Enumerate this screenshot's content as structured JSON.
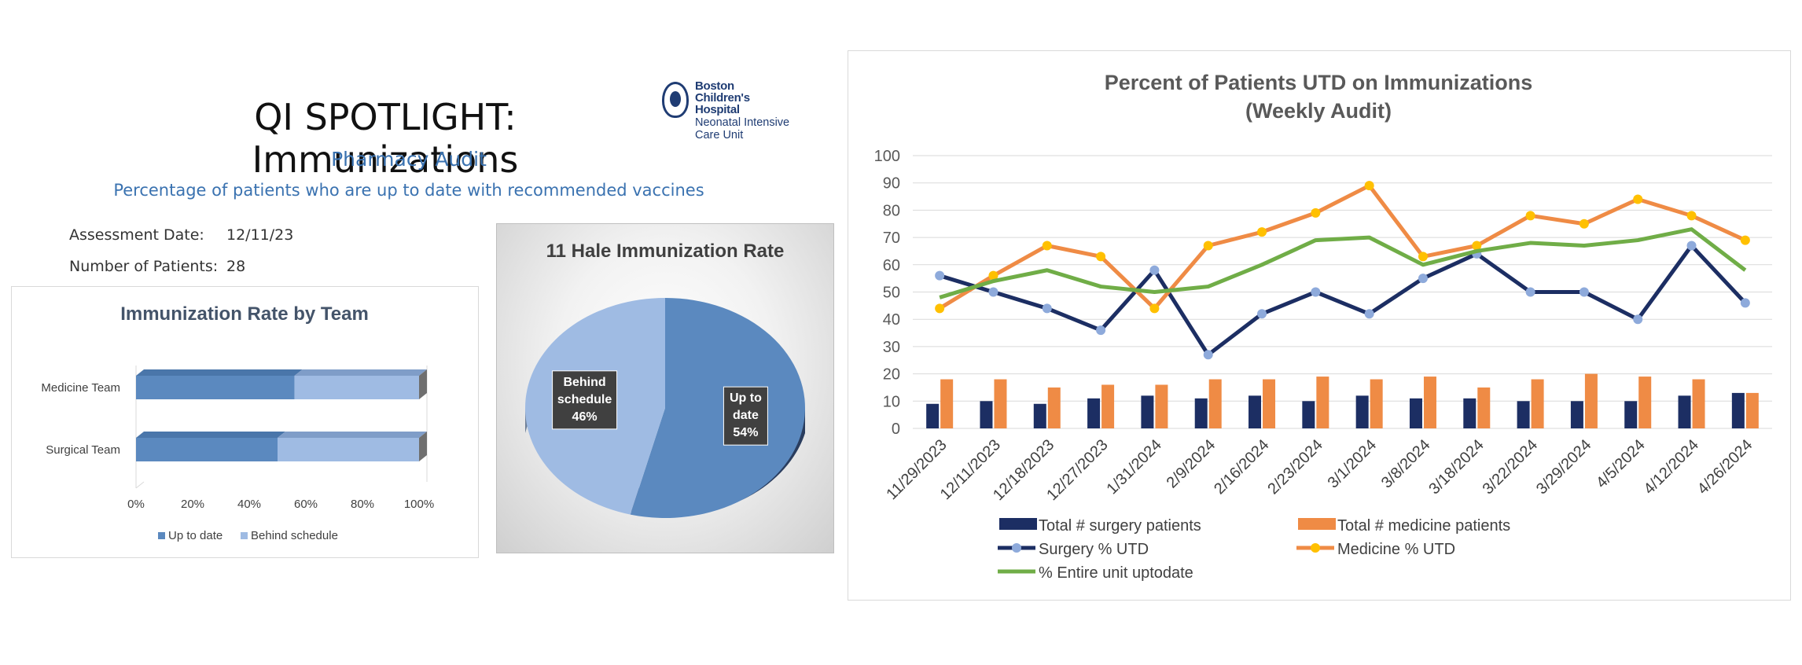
{
  "header": {
    "title": "QI SPOTLIGHT: Immunizations",
    "subtitle": "Pharmacy Audit",
    "description": "Percentage of patients who are up to date with recommended vaccines"
  },
  "logo": {
    "name_lines": [
      "Boston",
      "Children's",
      "Hospital"
    ],
    "unit_lines": [
      "Neonatal Intensive",
      "Care Unit"
    ]
  },
  "assessment": {
    "date_label": "Assessment Date:",
    "date_value": "12/11/23",
    "patients_label": "Number of Patients:",
    "patients_value": "28"
  },
  "colors": {
    "up_to_date": "#5b89bf",
    "behind_schedule": "#9fbbe3",
    "surgery": "#1c2e63",
    "medicine": "#ef8b45",
    "entire_unit": "#70ad47",
    "subtitle_blue": "#3a72b0"
  },
  "chart_data": [
    {
      "type": "bar",
      "orientation": "horizontal",
      "stacked": "percent",
      "title": "Immunization Rate by Team",
      "categories": [
        "Medicine Team",
        "Surgical Team"
      ],
      "series": [
        {
          "name": "Up to date",
          "values": [
            56,
            50
          ]
        },
        {
          "name": "Behind schedule",
          "values": [
            44,
            50
          ]
        }
      ],
      "xlim": [
        0,
        100
      ],
      "xticks": [
        "0%",
        "20%",
        "40%",
        "60%",
        "80%",
        "100%"
      ],
      "legend_position": "bottom"
    },
    {
      "type": "pie",
      "title": "11 Hale Immunization Rate",
      "slices": [
        {
          "name": "Up to date",
          "value": 54,
          "label_lines": [
            "Up to",
            "date",
            "54%"
          ]
        },
        {
          "name": "Behind schedule",
          "value": 46,
          "label_lines": [
            "Behind",
            "schedule",
            "46%"
          ]
        }
      ]
    },
    {
      "type": "bar+line",
      "title_lines": [
        "Percent of Patients UTD on Immunizations",
        "(Weekly Audit)"
      ],
      "categories": [
        "11/29/2023",
        "12/11/2023",
        "12/18/2023",
        "12/27/2023",
        "1/31/2024",
        "2/9/2024",
        "2/16/2024",
        "2/23/2024",
        "3/1/2024",
        "3/8/2024",
        "3/18/2024",
        "3/22/2024",
        "3/29/2024",
        "4/5/2024",
        "4/12/2024",
        "4/26/2024"
      ],
      "ylim": [
        0,
        100
      ],
      "yticks": [
        0,
        10,
        20,
        30,
        40,
        50,
        60,
        70,
        80,
        90,
        100
      ],
      "grid": true,
      "legend_position": "bottom",
      "bars": [
        {
          "name": "Total # surgery patients",
          "values": [
            9,
            10,
            9,
            11,
            12,
            11,
            12,
            10,
            12,
            11,
            11,
            10,
            10,
            10,
            12,
            13
          ]
        },
        {
          "name": "Total # medicine patients",
          "values": [
            18,
            18,
            15,
            16,
            16,
            18,
            18,
            19,
            18,
            19,
            15,
            18,
            20,
            19,
            18,
            13
          ]
        }
      ],
      "lines": [
        {
          "name": "Surgery % UTD",
          "marker": true,
          "values": [
            56,
            50,
            44,
            36,
            58,
            27,
            42,
            50,
            42,
            55,
            64,
            50,
            50,
            40,
            67,
            46
          ]
        },
        {
          "name": "Medicine % UTD",
          "marker": true,
          "values": [
            44,
            56,
            67,
            63,
            44,
            67,
            72,
            79,
            89,
            63,
            67,
            78,
            75,
            84,
            78,
            69
          ]
        },
        {
          "name": "% Entire unit uptodate",
          "marker": false,
          "values": [
            48,
            54,
            58,
            52,
            50,
            52,
            60,
            69,
            70,
            60,
            65,
            68,
            67,
            69,
            73,
            58
          ]
        }
      ]
    }
  ]
}
